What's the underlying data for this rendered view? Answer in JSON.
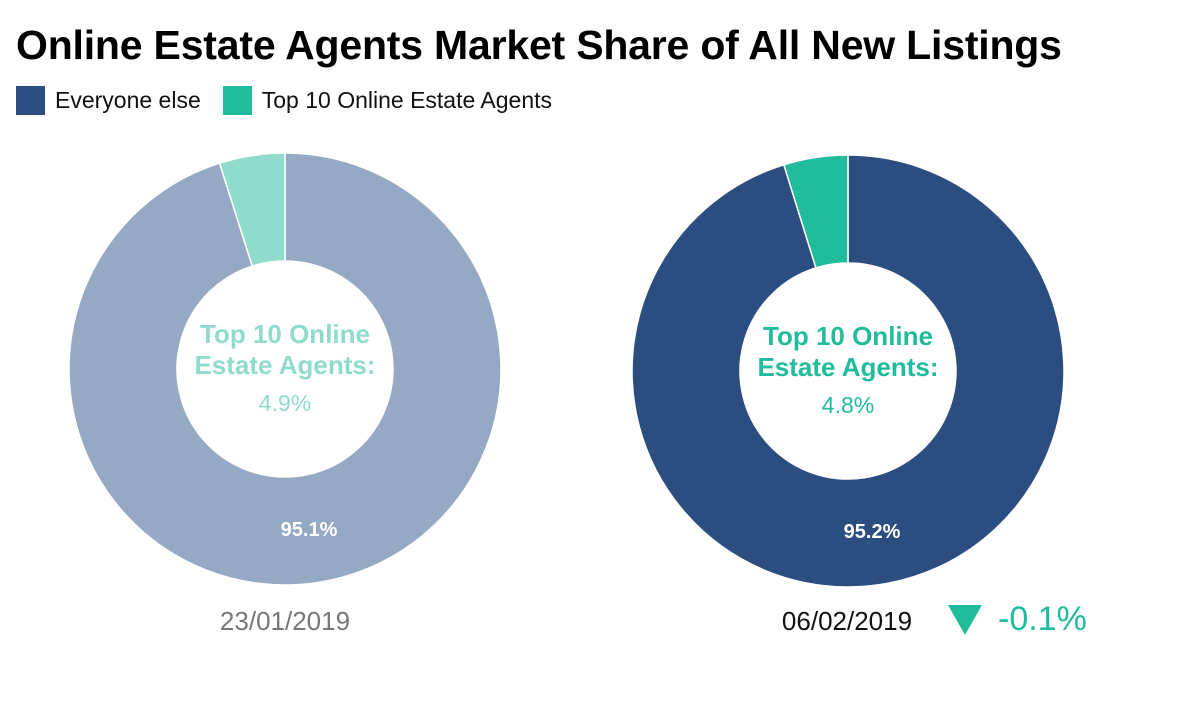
{
  "title": "Online Estate Agents Market Share of All New Listings",
  "legend": [
    {
      "label": "Everyone else",
      "color": "#2b4d80"
    },
    {
      "label": "Top 10 Online Estate Agents",
      "color": "#20bc9c"
    }
  ],
  "change": {
    "icon": "triangle-down-icon",
    "value": "-0.1%",
    "color": "#20bc9c"
  },
  "chart_data": [
    {
      "type": "pie",
      "variant": "donut",
      "date_label": "23/01/2019",
      "date_color": "#777777",
      "faded": true,
      "slices": [
        {
          "name": "Everyone else",
          "value": 95.1,
          "label": "95.1%",
          "color": "#95a8c4"
        },
        {
          "name": "Top 10 Online Estate Agents",
          "value": 4.9,
          "label": "4.9%",
          "color": "#8fdccd"
        }
      ],
      "center_text": [
        "Top 10 Online",
        "Estate Agents:"
      ],
      "center_value": "4.9%"
    },
    {
      "type": "pie",
      "variant": "donut",
      "date_label": "06/02/2019",
      "date_color": "#111111",
      "faded": false,
      "slices": [
        {
          "name": "Everyone else",
          "value": 95.2,
          "label": "95.2%",
          "color": "#2b4d80"
        },
        {
          "name": "Top 10 Online Estate Agents",
          "value": 4.8,
          "label": "4.8%",
          "color": "#20bc9c"
        }
      ],
      "center_text": [
        "Top 10 Online",
        "Estate Agents:"
      ],
      "center_value": "4.8%"
    }
  ]
}
